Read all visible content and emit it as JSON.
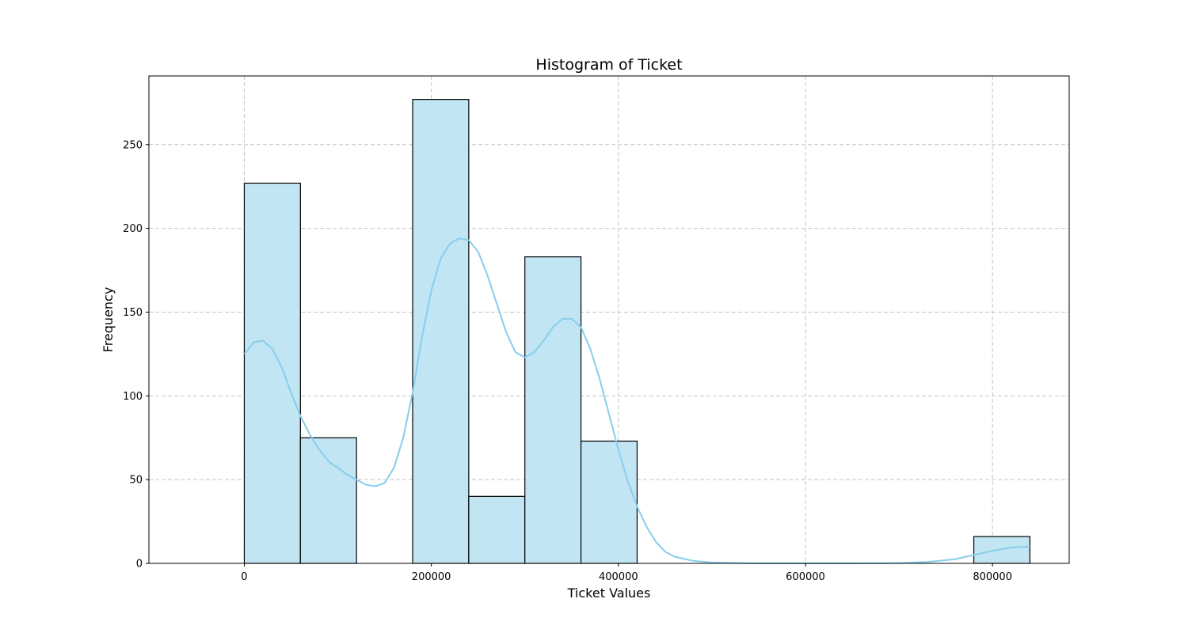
{
  "chart_data": {
    "type": "bar",
    "title": "Histogram of Ticket",
    "xlabel": "Ticket Values",
    "ylabel": "Frequency",
    "xlim": [
      -102000,
      882000
    ],
    "ylim": [
      0,
      291
    ],
    "grid": true,
    "xticks": [
      0,
      200000,
      400000,
      600000,
      800000
    ],
    "yticks": [
      0,
      50,
      100,
      150,
      200,
      250
    ],
    "bins": [
      {
        "start": 0,
        "end": 60000,
        "value": 227
      },
      {
        "start": 60000,
        "end": 120000,
        "value": 75
      },
      {
        "start": 180000,
        "end": 240000,
        "value": 277
      },
      {
        "start": 240000,
        "end": 300000,
        "value": 40
      },
      {
        "start": 300000,
        "end": 360000,
        "value": 183
      },
      {
        "start": 360000,
        "end": 420000,
        "value": 73
      },
      {
        "start": 780000,
        "end": 840000,
        "value": 16
      }
    ],
    "kde": {
      "color": "#87ceeb",
      "points": [
        [
          0,
          125
        ],
        [
          10000,
          132
        ],
        [
          20000,
          133
        ],
        [
          30000,
          128
        ],
        [
          40000,
          117
        ],
        [
          50000,
          102
        ],
        [
          60000,
          88
        ],
        [
          70000,
          77
        ],
        [
          80000,
          68
        ],
        [
          90000,
          61
        ],
        [
          100000,
          57
        ],
        [
          110000,
          53
        ],
        [
          120000,
          50
        ],
        [
          130000,
          47
        ],
        [
          140000,
          46
        ],
        [
          150000,
          48
        ],
        [
          160000,
          57
        ],
        [
          170000,
          75
        ],
        [
          180000,
          102
        ],
        [
          190000,
          135
        ],
        [
          200000,
          163
        ],
        [
          210000,
          182
        ],
        [
          220000,
          191
        ],
        [
          230000,
          194
        ],
        [
          240000,
          193
        ],
        [
          250000,
          186
        ],
        [
          260000,
          172
        ],
        [
          270000,
          155
        ],
        [
          280000,
          138
        ],
        [
          290000,
          126
        ],
        [
          300000,
          123
        ],
        [
          310000,
          126
        ],
        [
          320000,
          133
        ],
        [
          330000,
          141
        ],
        [
          340000,
          146
        ],
        [
          350000,
          146
        ],
        [
          360000,
          141
        ],
        [
          370000,
          128
        ],
        [
          380000,
          110
        ],
        [
          390000,
          89
        ],
        [
          400000,
          68
        ],
        [
          410000,
          49
        ],
        [
          420000,
          34
        ],
        [
          430000,
          22
        ],
        [
          440000,
          13
        ],
        [
          450000,
          7
        ],
        [
          460000,
          4
        ],
        [
          480000,
          1.5
        ],
        [
          500000,
          0.5
        ],
        [
          550000,
          0
        ],
        [
          650000,
          0
        ],
        [
          700000,
          0.2
        ],
        [
          730000,
          0.8
        ],
        [
          760000,
          2.5
        ],
        [
          780000,
          5
        ],
        [
          800000,
          7.5
        ],
        [
          820000,
          9.5
        ],
        [
          840000,
          10
        ]
      ]
    },
    "colors": {
      "bar_fill": "#c2e5f4",
      "bar_edge": "#000000",
      "grid": "#c4c4c4"
    }
  }
}
